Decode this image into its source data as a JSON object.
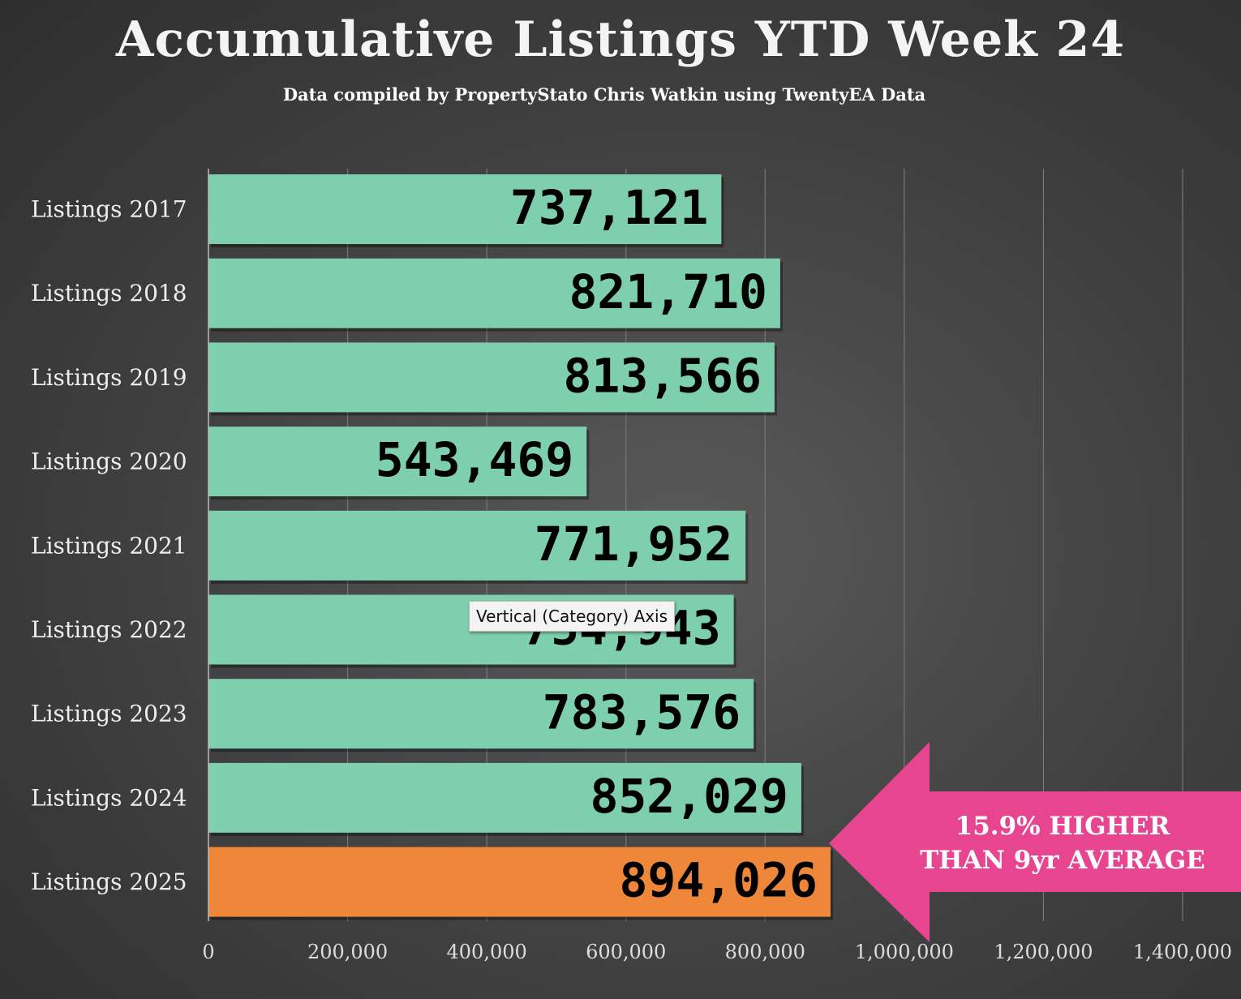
{
  "chart_data": {
    "type": "bar",
    "orientation": "horizontal",
    "title": "Accumulative Listings YTD Week 24",
    "subtitle": "Data compiled by PropertyStato Chris Watkin using TwentyEA Data",
    "categories": [
      "Listings 2017",
      "Listings 2018",
      "Listings 2019",
      "Listings 2020",
      "Listings 2021",
      "Listings 2022",
      "Listings 2023",
      "Listings 2024",
      "Listings 2025"
    ],
    "values": [
      737121,
      821710,
      813566,
      543469,
      771952,
      754943,
      783576,
      852029,
      894026
    ],
    "data_labels": [
      "737,121",
      "821,710",
      "813,566",
      "543,469",
      "771,952",
      "754,943",
      "783,576",
      "852,029",
      "894,026"
    ],
    "xlim": [
      0,
      1400000
    ],
    "x_ticks": [
      "0",
      "200,000",
      "400,000",
      "600,000",
      "800,000",
      "1,000,000",
      "1,200,000",
      "1,400,000"
    ],
    "x_tick_values": [
      0,
      200000,
      400000,
      600000,
      800000,
      1000000,
      1200000,
      1400000
    ],
    "grid": true,
    "colors": {
      "bar": "#7dcfad",
      "highlight_bar": "#ef873a",
      "callout": "#e84590",
      "text": "#ffffff",
      "label": "#000000"
    },
    "highlight_category": "Listings 2025",
    "annotation": {
      "lines": [
        "15.9% HIGHER",
        "THAN 9yr AVERAGE"
      ]
    }
  },
  "tooltip": "Vertical (Category) Axis"
}
